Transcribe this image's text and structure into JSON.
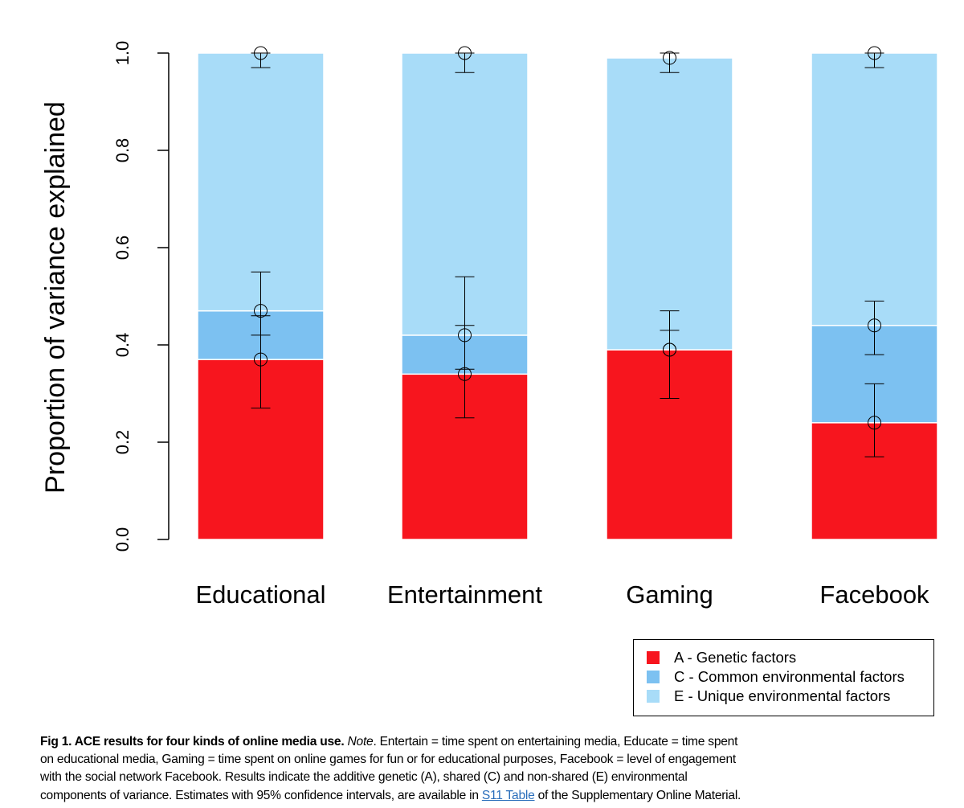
{
  "chart_data": {
    "type": "bar",
    "stacked": true,
    "categories": [
      "Educational",
      "Entertainment",
      "Gaming",
      "Facebook"
    ],
    "series": [
      {
        "name": "A - Genetic factors",
        "color": "#f7151e",
        "values": [
          0.37,
          0.34,
          0.39,
          0.24
        ]
      },
      {
        "name": "C - Common environmental factors",
        "color": "#7cc1f1",
        "values": [
          0.1,
          0.08,
          0.0,
          0.2
        ]
      },
      {
        "name": "E - Unique environmental factors",
        "color": "#a8dcf8",
        "values": [
          0.53,
          0.58,
          0.6,
          0.56
        ]
      }
    ],
    "error_bars": [
      [
        {
          "y": 0.37,
          "lo": 0.27,
          "hi": 0.46
        },
        {
          "y": 0.47,
          "lo": 0.42,
          "hi": 0.55
        },
        {
          "y": 1.0,
          "lo": 0.97,
          "hi": 1.0
        }
      ],
      [
        {
          "y": 0.34,
          "lo": 0.25,
          "hi": 0.44
        },
        {
          "y": 0.42,
          "lo": 0.35,
          "hi": 0.54
        },
        {
          "y": 1.0,
          "lo": 0.96,
          "hi": 1.0
        }
      ],
      [
        {
          "y": 0.39,
          "lo": 0.29,
          "hi": 0.47
        },
        {
          "y": 0.39,
          "lo": 0.29,
          "hi": 0.43
        },
        {
          "y": 0.99,
          "lo": 0.96,
          "hi": 1.0
        }
      ],
      [
        {
          "y": 0.24,
          "lo": 0.17,
          "hi": 0.32
        },
        {
          "y": 0.44,
          "lo": 0.38,
          "hi": 0.49
        },
        {
          "y": 1.0,
          "lo": 0.97,
          "hi": 1.0
        }
      ]
    ],
    "title": "",
    "xlabel": "",
    "ylabel": "Proportion of variance explained",
    "ylim": [
      0,
      1.0
    ],
    "yticks": [
      "0.0",
      "0.2",
      "0.4",
      "0.6",
      "0.8",
      "1.0"
    ],
    "legend_position": "bottom-right"
  },
  "caption": {
    "fig_label": "Fig 1. ACE results for four kinds of online media use.",
    "note_label": "Note",
    "line1_rest": ". Entertain = time spent on entertaining media, Educate = time spent",
    "line2": "on educational media, Gaming = time spent on online games for fun or for educational purposes, Facebook = level of engagement",
    "line3": "with the social network Facebook. Results indicate the additive genetic (A), shared (C) and non-shared (E) environmental",
    "line4_start": "components of variance. Estimates with 95% confidence intervals, are available in ",
    "link_text": "S11 Table",
    "line4_end": " of the Supplementary Online Material."
  }
}
